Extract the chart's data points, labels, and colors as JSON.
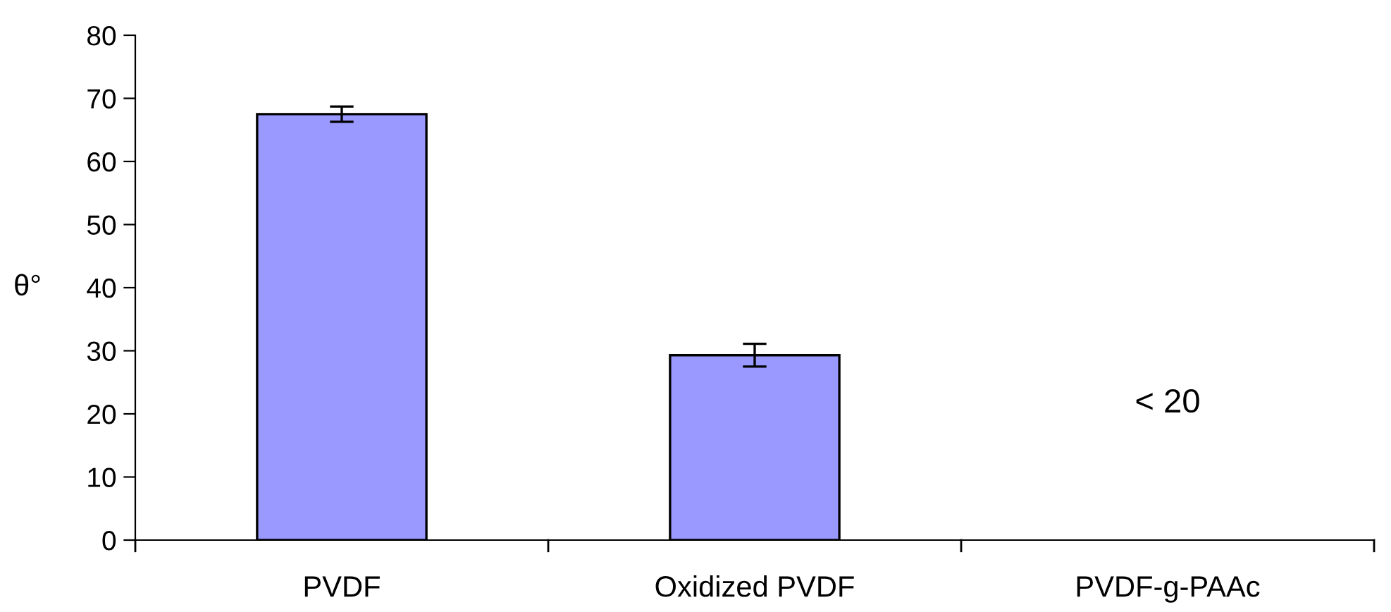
{
  "chart_data": {
    "type": "bar",
    "ylabel": "θ°",
    "categories": [
      "PVDF",
      "Oxidized PVDF",
      "PVDF-g-PAAc"
    ],
    "values": [
      67.5,
      29.3,
      null
    ],
    "errors": [
      1.2,
      1.8,
      null
    ],
    "color": "#9999ff",
    "ylim": [
      0,
      80
    ],
    "yticks": [
      0,
      10,
      20,
      30,
      40,
      50,
      60,
      70,
      80
    ],
    "annotations": [
      "< 20"
    ],
    "grid": false,
    "legend": false
  }
}
